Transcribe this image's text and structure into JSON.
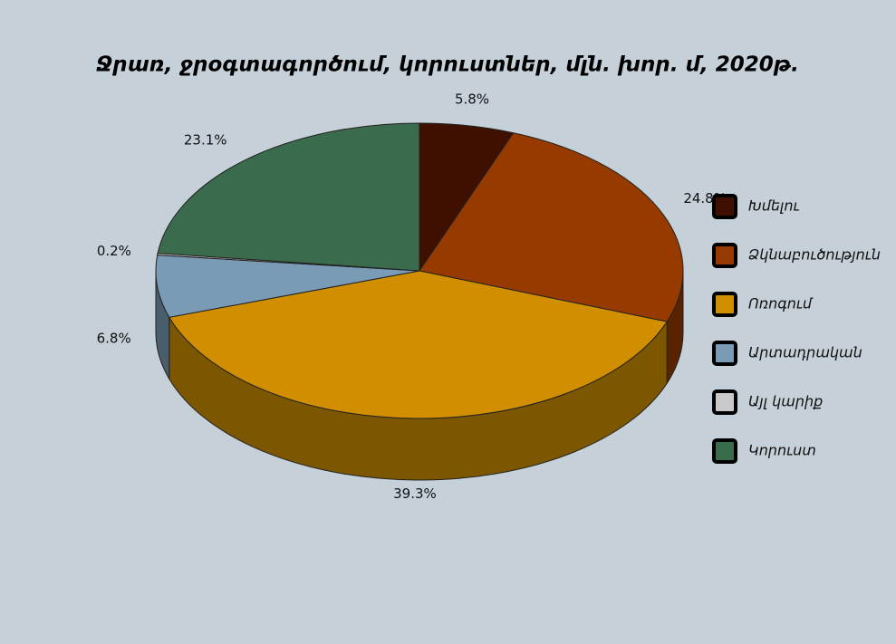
{
  "chart_data": {
    "type": "pie",
    "title": "Ջրառ, ջրօգտագործում, կորուստներ, մլն. խոր. մ, 2020թ.",
    "categories": [
      "Խմելու",
      "Ձկնաբուծություն",
      "Ոռոգում",
      "Արտադրական",
      "Այլ կարիք",
      "Կորուստ"
    ],
    "values": [
      5.8,
      24.8,
      39.3,
      6.8,
      0.2,
      23.1
    ],
    "value_labels": [
      "5.8%",
      "24.8%",
      "39.3%",
      "6.8%",
      "0.2%",
      "23.1%"
    ],
    "colors": [
      "#3f0f00",
      "#963a00",
      "#d18f00",
      "#7a9bb5",
      "#c9c9c9",
      "#3a6b4c"
    ]
  }
}
